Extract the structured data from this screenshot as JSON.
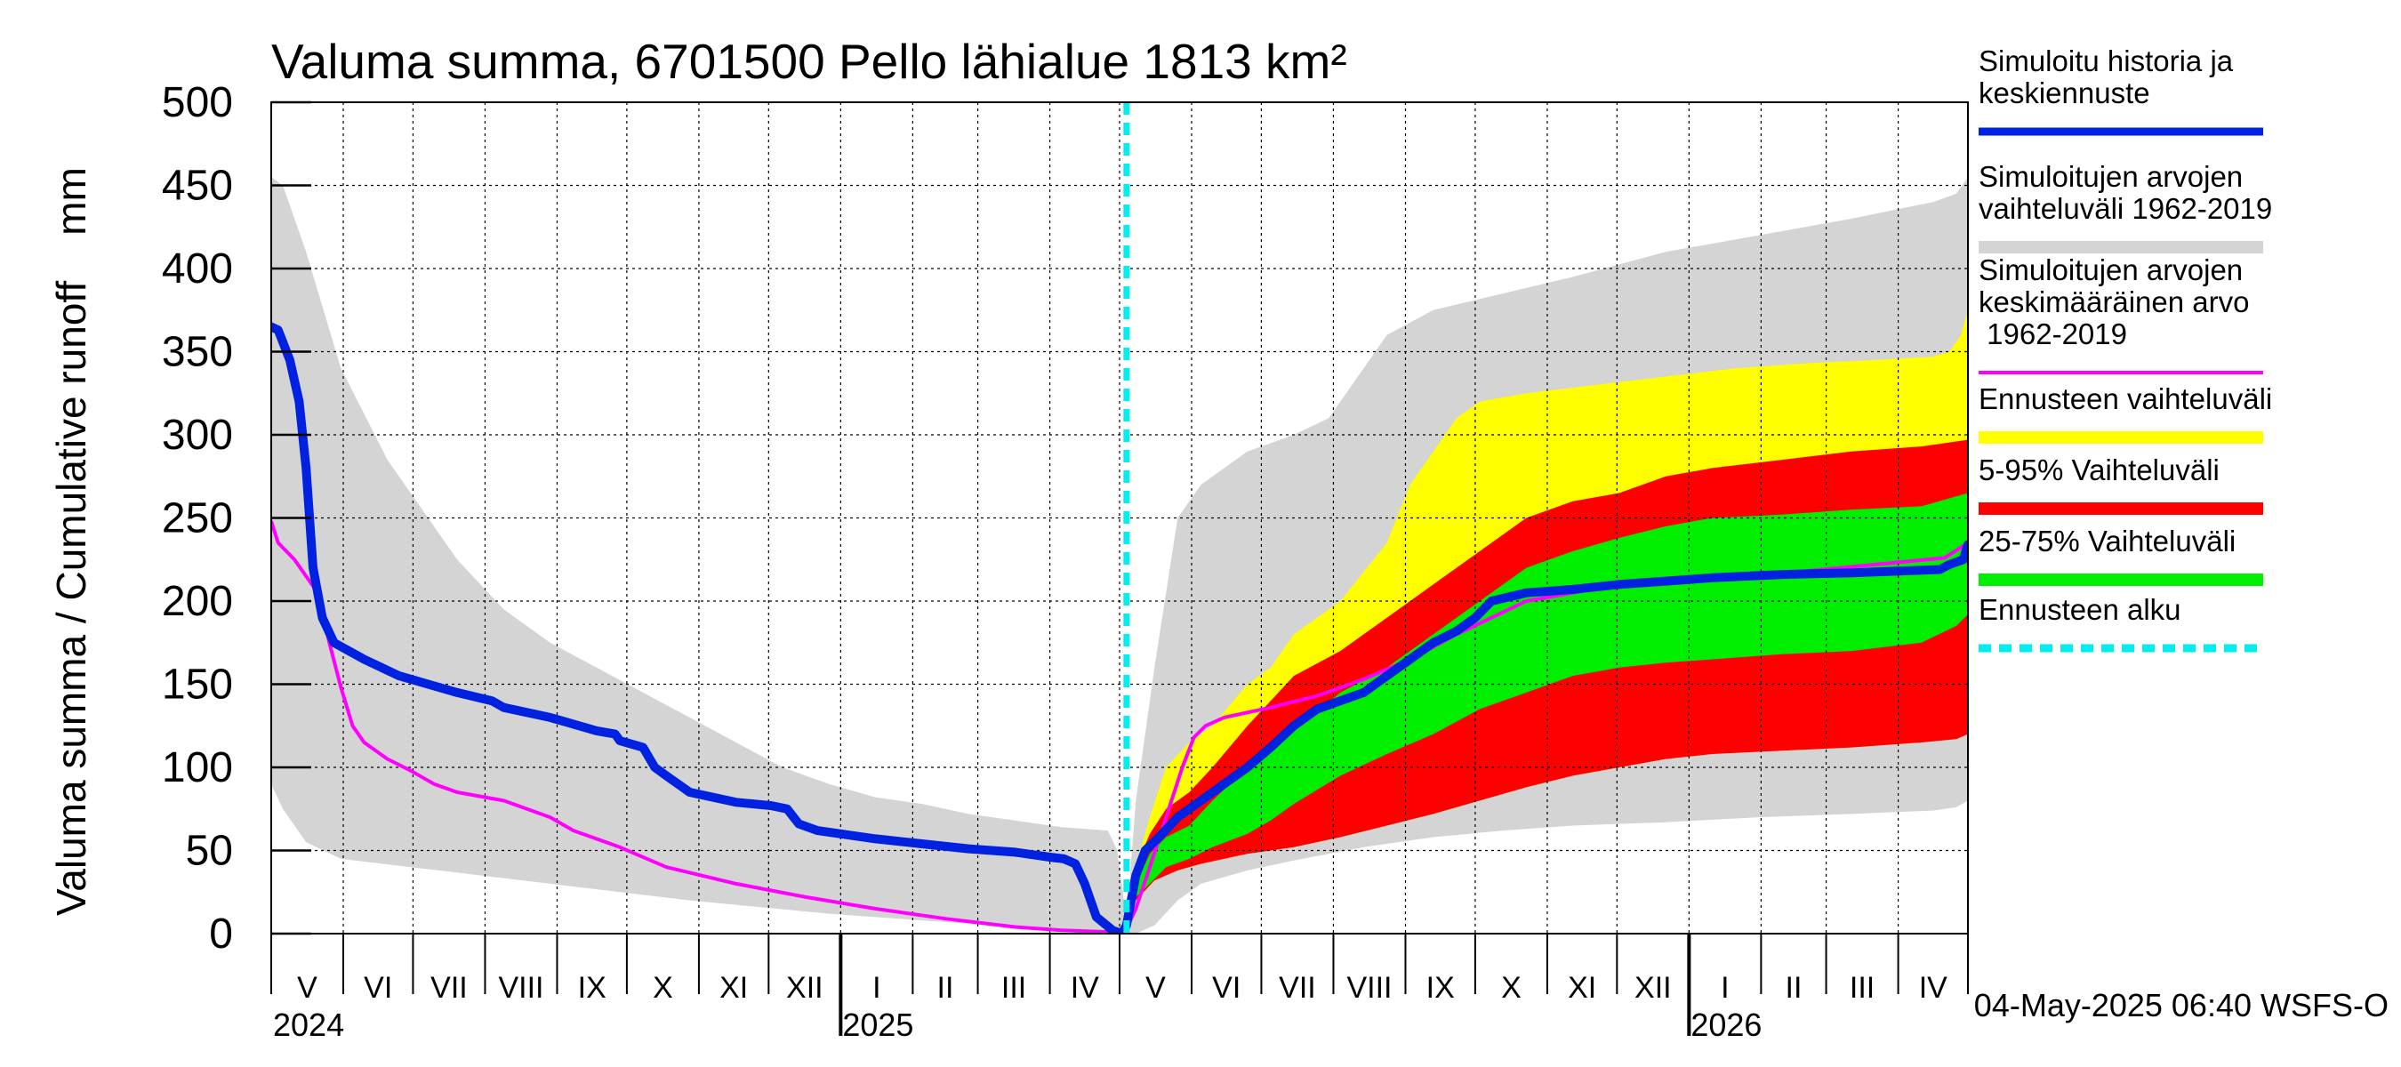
{
  "chart_data": {
    "type": "area",
    "title": "Valuma summa, 6701500 Pello lähialue 1813 km²",
    "ylabel": "Valuma summa / Cumulative runoff    mm",
    "ylim": [
      0,
      500
    ],
    "yticks": [
      0,
      50,
      100,
      150,
      200,
      250,
      300,
      350,
      400,
      450,
      500
    ],
    "xlim_days": [
      0,
      730
    ],
    "month_labels": [
      "V",
      "VI",
      "VII",
      "VIII",
      "IX",
      "X",
      "XI",
      "XII",
      "I",
      "II",
      "III",
      "IV",
      "V",
      "VI",
      "VII",
      "VIII",
      "IX",
      "X",
      "XI",
      "XII",
      "I",
      "II",
      "III",
      "IV"
    ],
    "month_starts_days": [
      0,
      31,
      61,
      92,
      123,
      153,
      184,
      214,
      245,
      276,
      304,
      335,
      365,
      396,
      426,
      457,
      488,
      518,
      549,
      579,
      610,
      641,
      669,
      700,
      730
    ],
    "year_labels": [
      {
        "label": "2024",
        "day": 0
      },
      {
        "label": "2025",
        "day": 245
      },
      {
        "label": "2026",
        "day": 610
      }
    ],
    "forecast_start_day": 368,
    "timestamp": "04-May-2025 06:40 WSFS-O",
    "colors": {
      "history": "#0022e0",
      "hist_range": "#d4d4d4",
      "hist_mean": "#ff00ff",
      "fc_range": "#ffff00",
      "p5_95": "#ff0000",
      "p25_75": "#00ee00",
      "forecast_start": "#00eeee"
    },
    "legend": [
      {
        "key": "history",
        "label": "Simuloitu historia ja keskiennuste",
        "style": "thick"
      },
      {
        "key": "hist_range",
        "label": "Simuloitujen arvojen vaihteluväli 1962-2019",
        "style": "band"
      },
      {
        "key": "hist_mean",
        "label": "Simuloitujen arvojen keskimääräinen arvo 1962-2019",
        "style": "thin"
      },
      {
        "key": "fc_range",
        "label": "Ennusteen vaihteluväli",
        "style": "band"
      },
      {
        "key": "p5_95",
        "label": "5-95% Vaihteluväli",
        "style": "band"
      },
      {
        "key": "p25_75",
        "label": "25-75% Vaihteluväli",
        "style": "band"
      },
      {
        "key": "forecast_start",
        "label": "Ennusteen alku",
        "style": "dashed"
      }
    ],
    "series": {
      "hist_range_upper": [
        [
          0,
          455
        ],
        [
          5,
          450
        ],
        [
          15,
          410
        ],
        [
          30,
          340
        ],
        [
          50,
          285
        ],
        [
          60,
          265
        ],
        [
          80,
          225
        ],
        [
          100,
          195
        ],
        [
          120,
          175
        ],
        [
          140,
          160
        ],
        [
          160,
          145
        ],
        [
          180,
          130
        ],
        [
          200,
          115
        ],
        [
          220,
          100
        ],
        [
          240,
          90
        ],
        [
          260,
          82
        ],
        [
          280,
          78
        ],
        [
          300,
          72
        ],
        [
          320,
          68
        ],
        [
          340,
          64
        ],
        [
          360,
          62
        ],
        [
          364,
          50
        ],
        [
          368,
          8
        ],
        [
          372,
          80
        ],
        [
          380,
          160
        ],
        [
          390,
          250
        ],
        [
          400,
          270
        ],
        [
          420,
          290
        ],
        [
          440,
          300
        ],
        [
          455,
          310
        ],
        [
          470,
          340
        ],
        [
          480,
          360
        ],
        [
          500,
          375
        ],
        [
          530,
          385
        ],
        [
          560,
          395
        ],
        [
          600,
          410
        ],
        [
          640,
          420
        ],
        [
          680,
          430
        ],
        [
          715,
          440
        ],
        [
          725,
          445
        ],
        [
          730,
          455
        ]
      ],
      "hist_range_lower": [
        [
          0,
          90
        ],
        [
          5,
          75
        ],
        [
          15,
          55
        ],
        [
          30,
          45
        ],
        [
          60,
          40
        ],
        [
          90,
          35
        ],
        [
          120,
          30
        ],
        [
          150,
          25
        ],
        [
          180,
          20
        ],
        [
          210,
          16
        ],
        [
          240,
          12
        ],
        [
          270,
          9
        ],
        [
          300,
          6
        ],
        [
          330,
          3
        ],
        [
          360,
          1
        ],
        [
          364,
          0
        ],
        [
          368,
          0
        ],
        [
          372,
          0
        ],
        [
          380,
          5
        ],
        [
          390,
          20
        ],
        [
          400,
          30
        ],
        [
          420,
          38
        ],
        [
          440,
          44
        ],
        [
          470,
          52
        ],
        [
          500,
          58
        ],
        [
          530,
          62
        ],
        [
          560,
          65
        ],
        [
          600,
          67
        ],
        [
          640,
          70
        ],
        [
          680,
          72
        ],
        [
          715,
          74
        ],
        [
          725,
          76
        ],
        [
          730,
          80
        ]
      ],
      "hist_mean": [
        [
          0,
          248
        ],
        [
          3,
          235
        ],
        [
          10,
          225
        ],
        [
          15,
          215
        ],
        [
          20,
          205
        ],
        [
          25,
          175
        ],
        [
          30,
          148
        ],
        [
          35,
          125
        ],
        [
          40,
          115
        ],
        [
          50,
          105
        ],
        [
          60,
          98
        ],
        [
          70,
          90
        ],
        [
          80,
          85
        ],
        [
          100,
          80
        ],
        [
          120,
          70
        ],
        [
          130,
          62
        ],
        [
          150,
          52
        ],
        [
          170,
          40
        ],
        [
          200,
          30
        ],
        [
          230,
          22
        ],
        [
          260,
          15
        ],
        [
          290,
          9
        ],
        [
          320,
          4
        ],
        [
          340,
          2
        ],
        [
          360,
          1
        ],
        [
          364,
          2
        ],
        [
          368,
          3
        ],
        [
          372,
          15
        ],
        [
          378,
          40
        ],
        [
          385,
          70
        ],
        [
          392,
          100
        ],
        [
          397,
          118
        ],
        [
          402,
          125
        ],
        [
          410,
          130
        ],
        [
          430,
          136
        ],
        [
          450,
          143
        ],
        [
          470,
          153
        ],
        [
          490,
          165
        ],
        [
          510,
          180
        ],
        [
          525,
          190
        ],
        [
          540,
          200
        ],
        [
          560,
          205
        ],
        [
          580,
          210
        ],
        [
          600,
          212
        ],
        [
          630,
          215
        ],
        [
          660,
          218
        ],
        [
          690,
          222
        ],
        [
          720,
          226
        ],
        [
          730,
          235
        ]
      ],
      "history": [
        [
          0,
          365
        ],
        [
          3,
          363
        ],
        [
          8,
          345
        ],
        [
          12,
          320
        ],
        [
          15,
          280
        ],
        [
          18,
          220
        ],
        [
          22,
          190
        ],
        [
          27,
          175
        ],
        [
          40,
          165
        ],
        [
          55,
          155
        ],
        [
          80,
          145
        ],
        [
          95,
          140
        ],
        [
          100,
          136
        ],
        [
          120,
          130
        ],
        [
          130,
          126
        ],
        [
          140,
          122
        ],
        [
          148,
          120
        ],
        [
          150,
          116
        ],
        [
          160,
          112
        ],
        [
          165,
          100
        ],
        [
          170,
          95
        ],
        [
          180,
          85
        ],
        [
          200,
          79
        ],
        [
          215,
          77
        ],
        [
          222,
          75
        ],
        [
          227,
          66
        ],
        [
          235,
          62
        ],
        [
          260,
          57
        ],
        [
          280,
          54
        ],
        [
          300,
          51
        ],
        [
          320,
          49
        ],
        [
          335,
          46
        ],
        [
          341,
          45
        ],
        [
          346,
          42
        ],
        [
          350,
          30
        ],
        [
          355,
          10
        ],
        [
          362,
          2
        ],
        [
          366,
          0
        ],
        [
          368,
          5
        ],
        [
          372,
          35
        ],
        [
          376,
          50
        ],
        [
          382,
          58
        ],
        [
          390,
          70
        ],
        [
          400,
          80
        ],
        [
          410,
          90
        ],
        [
          420,
          100
        ],
        [
          430,
          112
        ],
        [
          440,
          125
        ],
        [
          450,
          135
        ],
        [
          460,
          140
        ],
        [
          470,
          145
        ],
        [
          480,
          155
        ],
        [
          490,
          165
        ],
        [
          500,
          175
        ],
        [
          510,
          182
        ],
        [
          518,
          190
        ],
        [
          525,
          200
        ],
        [
          540,
          205
        ],
        [
          560,
          207
        ],
        [
          580,
          210
        ],
        [
          600,
          212
        ],
        [
          620,
          214
        ],
        [
          650,
          216
        ],
        [
          680,
          217
        ],
        [
          700,
          218
        ],
        [
          718,
          219
        ],
        [
          722,
          222
        ],
        [
          728,
          225
        ],
        [
          730,
          234
        ]
      ],
      "fc_range_upper": [
        [
          366,
          2
        ],
        [
          372,
          40
        ],
        [
          378,
          70
        ],
        [
          385,
          100
        ],
        [
          395,
          115
        ],
        [
          405,
          125
        ],
        [
          420,
          150
        ],
        [
          430,
          160
        ],
        [
          440,
          180
        ],
        [
          460,
          200
        ],
        [
          480,
          235
        ],
        [
          490,
          270
        ],
        [
          500,
          290
        ],
        [
          510,
          310
        ],
        [
          520,
          320
        ],
        [
          540,
          325
        ],
        [
          570,
          330
        ],
        [
          600,
          335
        ],
        [
          630,
          340
        ],
        [
          660,
          343
        ],
        [
          690,
          345
        ],
        [
          715,
          347
        ],
        [
          722,
          350
        ],
        [
          727,
          360
        ],
        [
          730,
          375
        ]
      ],
      "fc_range_lower": [
        [
          366,
          0
        ],
        [
          372,
          20
        ],
        [
          380,
          32
        ],
        [
          390,
          38
        ],
        [
          400,
          42
        ],
        [
          420,
          48
        ],
        [
          440,
          52
        ],
        [
          460,
          58
        ],
        [
          480,
          65
        ],
        [
          500,
          72
        ],
        [
          520,
          80
        ],
        [
          540,
          88
        ],
        [
          560,
          95
        ],
        [
          580,
          100
        ],
        [
          600,
          105
        ],
        [
          620,
          108
        ],
        [
          650,
          110
        ],
        [
          680,
          112
        ],
        [
          710,
          115
        ],
        [
          725,
          117
        ],
        [
          730,
          120
        ]
      ],
      "p5_upper": [
        [
          366,
          2
        ],
        [
          372,
          40
        ],
        [
          378,
          60
        ],
        [
          385,
          75
        ],
        [
          395,
          85
        ],
        [
          405,
          100
        ],
        [
          420,
          125
        ],
        [
          430,
          140
        ],
        [
          440,
          155
        ],
        [
          460,
          170
        ],
        [
          480,
          190
        ],
        [
          500,
          210
        ],
        [
          520,
          230
        ],
        [
          540,
          250
        ],
        [
          560,
          260
        ],
        [
          580,
          265
        ],
        [
          600,
          275
        ],
        [
          620,
          280
        ],
        [
          650,
          285
        ],
        [
          680,
          290
        ],
        [
          710,
          293
        ],
        [
          730,
          297
        ]
      ],
      "p5_lower": [
        [
          366,
          0
        ],
        [
          372,
          20
        ],
        [
          380,
          32
        ],
        [
          390,
          38
        ],
        [
          400,
          42
        ],
        [
          420,
          48
        ],
        [
          440,
          52
        ],
        [
          460,
          58
        ],
        [
          480,
          65
        ],
        [
          500,
          72
        ],
        [
          520,
          80
        ],
        [
          540,
          88
        ],
        [
          560,
          95
        ],
        [
          580,
          100
        ],
        [
          600,
          105
        ],
        [
          620,
          108
        ],
        [
          650,
          110
        ],
        [
          680,
          112
        ],
        [
          710,
          115
        ],
        [
          725,
          117
        ],
        [
          730,
          120
        ]
      ],
      "p25_upper": [
        [
          366,
          1
        ],
        [
          372,
          30
        ],
        [
          378,
          48
        ],
        [
          385,
          58
        ],
        [
          395,
          65
        ],
        [
          405,
          80
        ],
        [
          420,
          100
        ],
        [
          430,
          110
        ],
        [
          440,
          122
        ],
        [
          460,
          145
        ],
        [
          480,
          160
        ],
        [
          500,
          180
        ],
        [
          520,
          200
        ],
        [
          540,
          220
        ],
        [
          560,
          230
        ],
        [
          580,
          238
        ],
        [
          600,
          245
        ],
        [
          620,
          250
        ],
        [
          650,
          252
        ],
        [
          680,
          255
        ],
        [
          710,
          257
        ],
        [
          730,
          265
        ]
      ],
      "p25_lower": [
        [
          366,
          0
        ],
        [
          372,
          22
        ],
        [
          378,
          30
        ],
        [
          385,
          40
        ],
        [
          395,
          45
        ],
        [
          405,
          52
        ],
        [
          420,
          60
        ],
        [
          430,
          68
        ],
        [
          440,
          78
        ],
        [
          460,
          95
        ],
        [
          480,
          108
        ],
        [
          500,
          120
        ],
        [
          520,
          135
        ],
        [
          540,
          145
        ],
        [
          560,
          155
        ],
        [
          580,
          160
        ],
        [
          600,
          163
        ],
        [
          620,
          165
        ],
        [
          650,
          168
        ],
        [
          680,
          170
        ],
        [
          710,
          175
        ],
        [
          725,
          185
        ],
        [
          730,
          192
        ]
      ]
    }
  }
}
